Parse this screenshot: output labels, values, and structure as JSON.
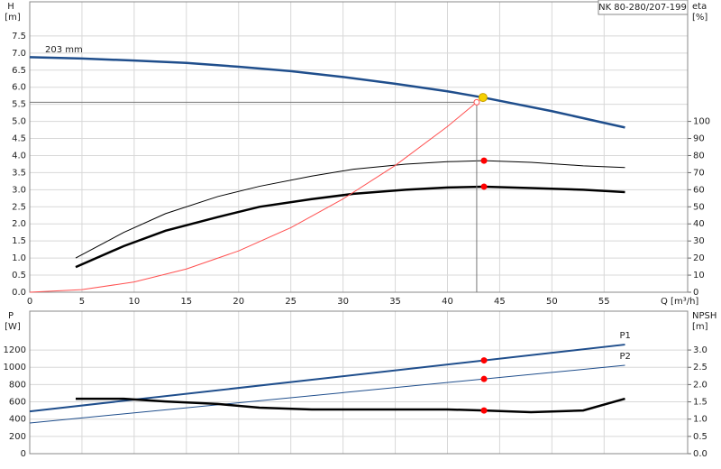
{
  "chart_data": [
    {
      "type": "line",
      "title": "NK 80-280/207-199",
      "xlabel": "Q [m³/h]",
      "ylabel": "H",
      "yunit": "[m]",
      "y2label": "eta",
      "y2unit": "[%]",
      "annotation": "203 mm",
      "xlim": [
        0,
        63
      ],
      "xticks": [
        0,
        5,
        10,
        15,
        20,
        25,
        30,
        35,
        40,
        45,
        50,
        55
      ],
      "ylim": [
        0,
        8.5
      ],
      "yticks": [
        {
          "value": 0,
          "label": "0.0"
        },
        0.5,
        {
          "value": 1,
          "label": "1.0"
        },
        1.5,
        {
          "value": 2,
          "label": "2.0"
        },
        2.5,
        {
          "value": 3,
          "label": "3.0"
        },
        3.5,
        {
          "value": 4,
          "label": "4.0"
        },
        4.5,
        {
          "value": 5,
          "label": "5.0"
        },
        5.5,
        {
          "value": 6,
          "label": "6.0"
        },
        6.5,
        {
          "value": 7,
          "label": "7.0"
        },
        7.5
      ],
      "y2lim": [
        0,
        170
      ],
      "y2ticks": [
        0,
        10,
        20,
        30,
        40,
        50,
        60,
        70,
        80,
        90,
        100
      ],
      "grid": true,
      "series": [
        {
          "color": "#1f4e8c",
          "width": 2.5,
          "x": [
            0,
            5,
            10,
            15,
            20,
            25,
            30,
            35,
            40,
            43.4,
            50,
            57
          ],
          "values": [
            6.88,
            6.84,
            6.78,
            6.71,
            6.6,
            6.47,
            6.3,
            6.1,
            5.88,
            5.7,
            5.3,
            4.82
          ]
        },
        {
          "color": "#000000",
          "width": 1,
          "axis": "y2",
          "x": [
            4.4,
            9,
            13,
            18,
            22,
            27,
            31,
            36,
            40,
            43.5,
            48,
            53,
            57
          ],
          "values": [
            20,
            35,
            46,
            56,
            62,
            68,
            72,
            75,
            76.4,
            77,
            76,
            74,
            73
          ]
        },
        {
          "color": "#000000",
          "width": 2.5,
          "axis": "y2",
          "x": [
            4.4,
            9,
            13,
            18,
            22,
            27,
            31,
            36,
            40,
            43.5,
            48,
            53,
            57
          ],
          "values": [
            14.7,
            27,
            36,
            44,
            50,
            54.5,
            57.6,
            60,
            61.3,
            61.8,
            61,
            60,
            58.6
          ]
        },
        {
          "color": "#ff5050",
          "width": 1,
          "x": [
            0,
            5,
            10,
            15,
            20,
            25,
            30,
            35,
            40,
            42.8
          ],
          "values": [
            0,
            0.076,
            0.3,
            0.68,
            1.21,
            1.89,
            2.73,
            3.71,
            4.85,
            5.56
          ]
        }
      ],
      "points": [
        {
          "x": 43.4,
          "value": 5.7,
          "color": "#f5d000"
        },
        {
          "x": 43.5,
          "value": 77,
          "axis": "y2",
          "color": "#ff0000"
        },
        {
          "x": 43.5,
          "value": 61.8,
          "axis": "y2",
          "color": "#ff0000"
        }
      ]
    },
    {
      "type": "line",
      "ylabel": "P",
      "yunit": "[W]",
      "y2label": "NPSH",
      "y2unit": "[m]",
      "xlim": [
        0,
        63
      ],
      "xticks": [
        0,
        5,
        10,
        15,
        20,
        25,
        30,
        35,
        40,
        45,
        50,
        55
      ],
      "ylim": [
        0,
        1650
      ],
      "yticks": [
        0,
        200,
        400,
        600,
        800,
        1000,
        1200
      ],
      "y2lim": [
        0,
        4.125
      ],
      "y2ticks": [
        {
          "value": 0,
          "label": "0.0"
        },
        0.5,
        {
          "value": 1,
          "label": "1.0"
        },
        1.5,
        {
          "value": 2,
          "label": "2.0"
        },
        2.5,
        {
          "value": 3,
          "label": "3.0"
        }
      ],
      "grid": true,
      "series": [
        {
          "name": "P1",
          "color": "#1f4e8c",
          "width": 2,
          "x": [
            0,
            57
          ],
          "values": [
            490,
            1263
          ]
        },
        {
          "name": "P2",
          "color": "#1f4e8c",
          "width": 1,
          "x": [
            0,
            57
          ],
          "values": [
            355,
            1023
          ]
        },
        {
          "color": "#000000",
          "width": 2.5,
          "axis": "y2",
          "x": [
            4.4,
            9,
            13,
            18,
            22,
            27,
            35,
            40,
            43.5,
            48,
            53,
            57
          ],
          "values": [
            1.59,
            1.59,
            1.51,
            1.44,
            1.33,
            1.28,
            1.28,
            1.28,
            1.25,
            1.2,
            1.25,
            1.59
          ]
        }
      ],
      "points": [
        {
          "x": 43.5,
          "value": 1080,
          "color": "#ff0000"
        },
        {
          "x": 43.5,
          "value": 865,
          "color": "#ff0000"
        },
        {
          "x": 43.5,
          "value": 1.25,
          "axis": "y2",
          "color": "#ff0000"
        }
      ]
    }
  ]
}
